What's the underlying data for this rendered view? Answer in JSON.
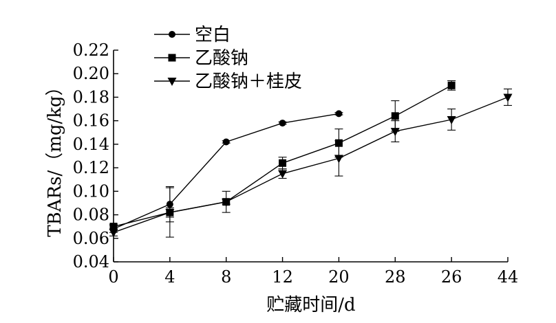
{
  "chart_data": {
    "type": "line",
    "xlabel": "贮藏时间/d",
    "ylabel": "TBARs/（mg/kg）",
    "categories": [
      "0",
      "4",
      "8",
      "12",
      "20",
      "28",
      "26",
      "44"
    ],
    "ylim": [
      0.04,
      0.22
    ],
    "yticks": [
      "0.04",
      "0.06",
      "0.08",
      "0.10",
      "0.12",
      "0.14",
      "0.16",
      "0.18",
      "0.20",
      "0.22"
    ],
    "grid": false,
    "legend_position": "top-left",
    "series": [
      {
        "name": "空白",
        "marker": "circle",
        "values": [
          0.068,
          0.089,
          0.142,
          0.158,
          0.166,
          null,
          null,
          null
        ],
        "errors": [
          0.003,
          0.015,
          0.001,
          0.001,
          0.001,
          null,
          null,
          null
        ]
      },
      {
        "name": "乙酸钠",
        "marker": "square",
        "values": [
          0.07,
          0.082,
          0.091,
          0.124,
          0.141,
          0.164,
          0.19,
          null
        ],
        "errors": [
          0.002,
          0.021,
          0.009,
          0.005,
          0.012,
          0.013,
          0.004,
          null
        ]
      },
      {
        "name": "乙酸钠＋桂皮",
        "marker": "triangle-down",
        "values": [
          0.065,
          0.082,
          0.091,
          0.115,
          0.128,
          0.151,
          0.161,
          0.18
        ],
        "errors": [
          0.003,
          0.004,
          0.002,
          0.004,
          0.015,
          0.009,
          0.009,
          0.007
        ]
      }
    ]
  }
}
